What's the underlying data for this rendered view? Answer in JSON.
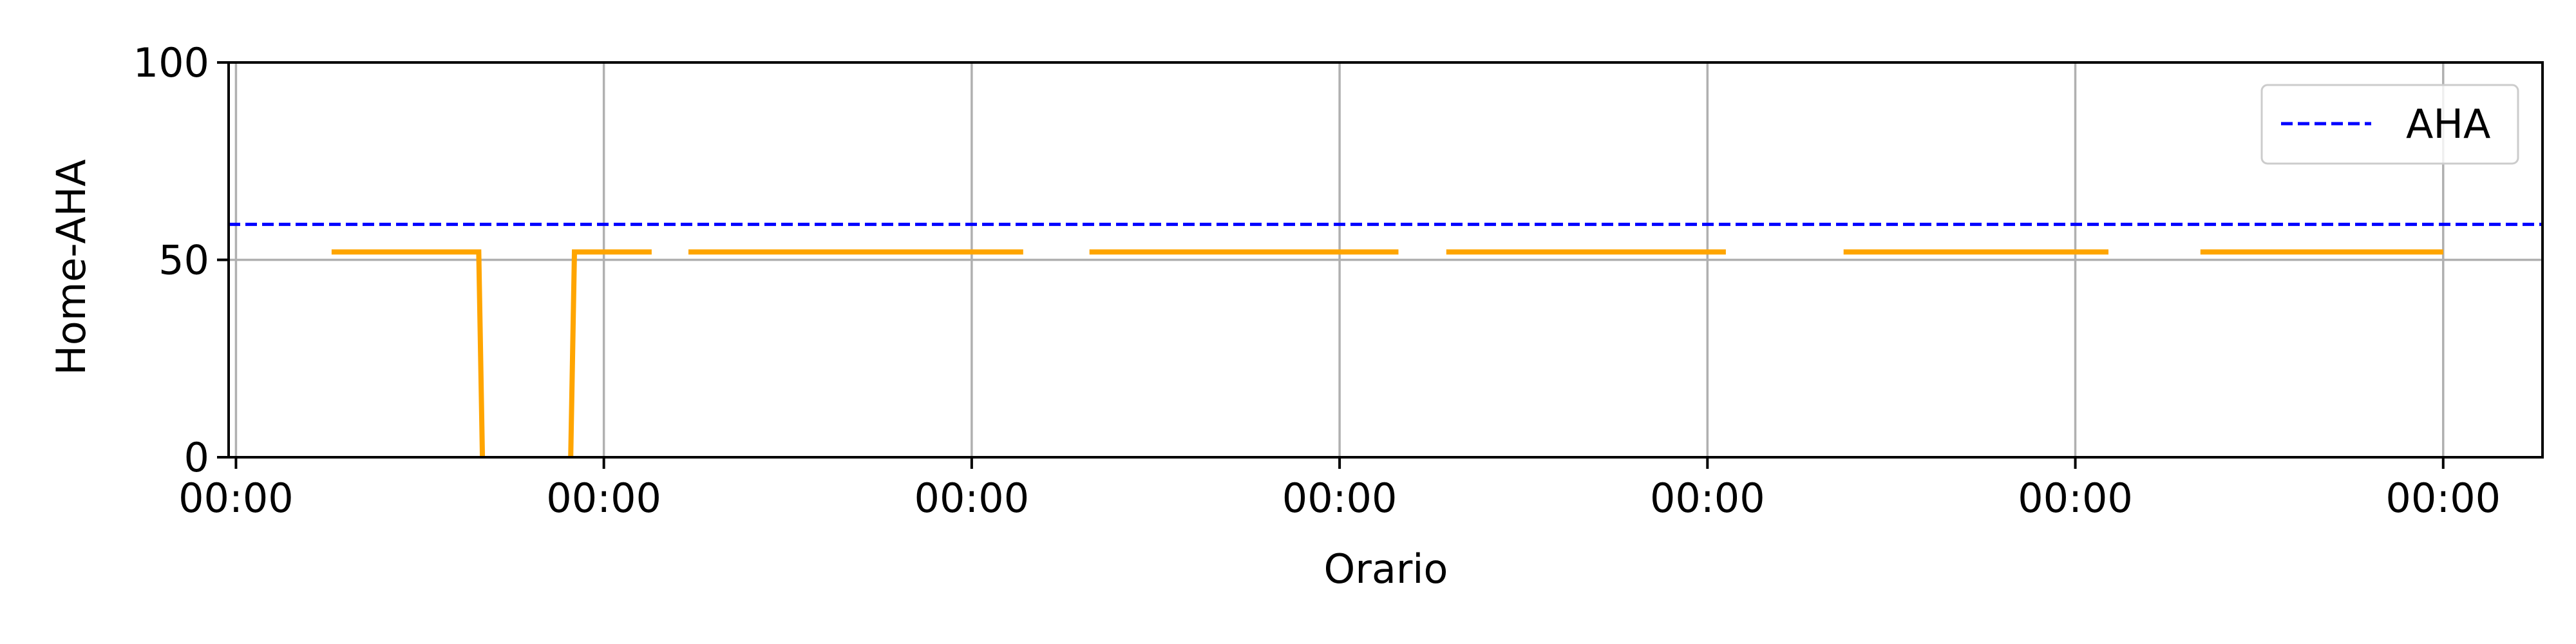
{
  "chart_data": {
    "type": "line",
    "title": "",
    "xlabel": "Orario",
    "ylabel": "Home-AHA",
    "xlim": [
      -0.02,
      6.27
    ],
    "ylim": [
      0,
      100
    ],
    "x_ticks": [
      0,
      1,
      2,
      3,
      4,
      5,
      6
    ],
    "x_tick_labels": [
      "00:00",
      "00:00",
      "00:00",
      "00:00",
      "00:00",
      "00:00",
      "00:00"
    ],
    "y_ticks": [
      0,
      50,
      100
    ],
    "y_tick_labels": [
      "0",
      "50",
      "100"
    ],
    "grid": true,
    "legend_position": "top-right",
    "colors": {
      "series": "#FFA500",
      "reference": "#0000FF",
      "grid": "#B0B0B0",
      "axis": "#000000"
    },
    "series": [
      {
        "name": "",
        "style": "solid",
        "segments": [
          [
            [
              0.26,
              52
            ],
            [
              0.66,
              52
            ],
            [
              0.67,
              0
            ]
          ],
          [
            [
              0.91,
              0
            ],
            [
              0.92,
              52
            ],
            [
              1.13,
              52
            ]
          ],
          [
            [
              1.23,
              52
            ],
            [
              2.14,
              52
            ]
          ],
          [
            [
              2.32,
              52
            ],
            [
              3.16,
              52
            ]
          ],
          [
            [
              3.29,
              52
            ],
            [
              4.05,
              52
            ]
          ],
          [
            [
              4.37,
              52
            ],
            [
              5.09,
              52
            ]
          ],
          [
            [
              5.34,
              52
            ],
            [
              6.0,
              52
            ]
          ]
        ]
      },
      {
        "name": "AHA",
        "style": "dashed",
        "y_constant": 59
      }
    ]
  }
}
